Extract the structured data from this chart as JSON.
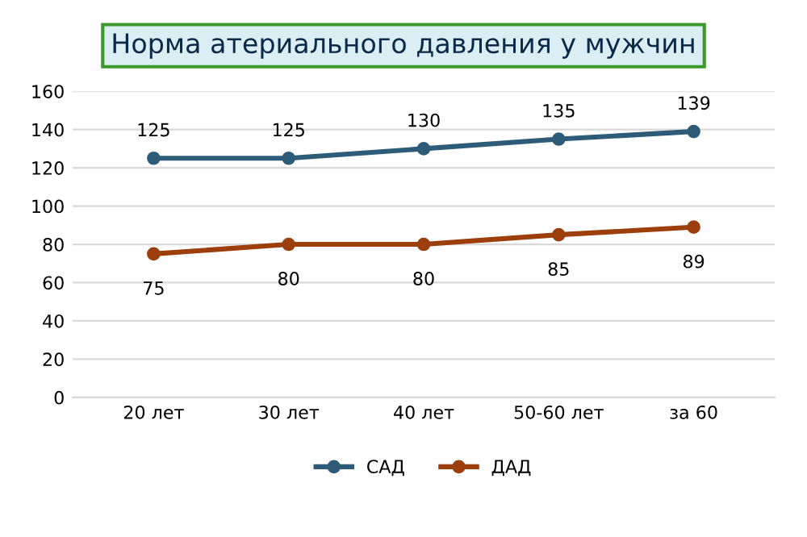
{
  "chart_data": {
    "type": "line",
    "title": "Норма атериального давления у мужчин",
    "categories": [
      "20 лет",
      "30 лет",
      "40 лет",
      "50-60 лет",
      "за 60"
    ],
    "series": [
      {
        "name": "САД",
        "color": "#2e5c78",
        "values": [
          125,
          125,
          130,
          135,
          139
        ]
      },
      {
        "name": "ДАД",
        "color": "#9c3f0c",
        "values": [
          75,
          80,
          80,
          85,
          89
        ]
      }
    ],
    "ylim": [
      0,
      160
    ],
    "yticks": [
      0,
      20,
      40,
      60,
      80,
      100,
      120,
      140,
      160
    ],
    "grid": "y",
    "legend": "bottom",
    "marker": "circle",
    "line_style": "solid",
    "data_labels": true
  }
}
